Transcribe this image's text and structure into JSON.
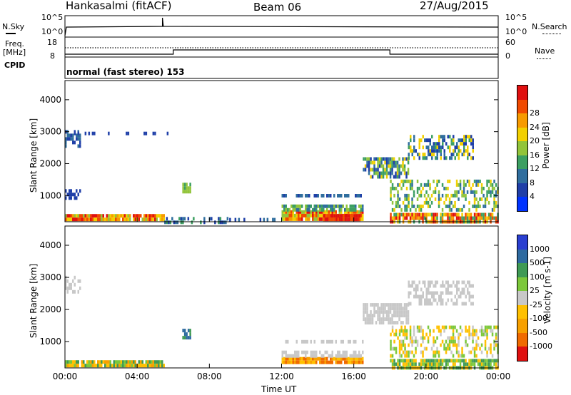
{
  "header": {
    "station": "Hankasalmi (fitACF)",
    "beam": "Beam 06",
    "date": "27/Aug/2015"
  },
  "top_panels": {
    "nsky_label": "N.Sky",
    "nsky_tick_hi": "10^5",
    "nsky_tick_lo": "10^0",
    "nsearch_label": "N.Search",
    "nsearch_tick_hi": "10^5",
    "nsearch_tick_lo": "10^0",
    "freq_label_1": "Freq.",
    "freq_label_2": "[MHz]",
    "freq_tick_hi": "18",
    "freq_tick_lo": "8",
    "nave_label": "Nave",
    "nave_tick_hi": "60",
    "nave_tick_lo": "0",
    "cpid_label": "CPID",
    "cpid_text": "normal (fast stereo) 153"
  },
  "x_axis": {
    "title": "Time UT",
    "ticks": [
      "00:00",
      "04:00",
      "08:00",
      "12:00",
      "16:00",
      "20:00",
      "00:00"
    ]
  },
  "chart_data": [
    {
      "type": "heatmap",
      "name": "power",
      "ylabel": "Slant Range [km]",
      "yticks": [
        1000,
        2000,
        3000,
        4000
      ],
      "ylim": [
        180,
        4600
      ],
      "xlim": [
        0,
        24
      ],
      "colorbar_label": "Power [dB]",
      "colorbar_ticks": [
        "4",
        "8",
        "12",
        "16",
        "20",
        "24",
        "28"
      ],
      "colorbar_colors": [
        "#0033ff",
        "#1f3fa8",
        "#2f6e9e",
        "#3c9f62",
        "#92c43a",
        "#f2d000",
        "#f79a00",
        "#f04a00",
        "#e01010"
      ]
    },
    {
      "type": "heatmap",
      "name": "velocity",
      "ylabel": "Slant Range [km]",
      "yticks": [
        1000,
        2000,
        3000,
        4000
      ],
      "ylim": [
        180,
        4600
      ],
      "xlim": [
        0,
        24
      ],
      "colorbar_label": "Velocity [m s-1]",
      "colorbar_ticks": [
        "1000",
        "500",
        "100",
        "25",
        "-25",
        "-100",
        "-500",
        "-1000"
      ],
      "colorbar_colors": [
        "#2a3fd0",
        "#2e6aa0",
        "#3f9a55",
        "#7cc83a",
        "#c8c8c8",
        "#ffc000",
        "#f7a000",
        "#f06a00",
        "#e01010"
      ]
    }
  ]
}
